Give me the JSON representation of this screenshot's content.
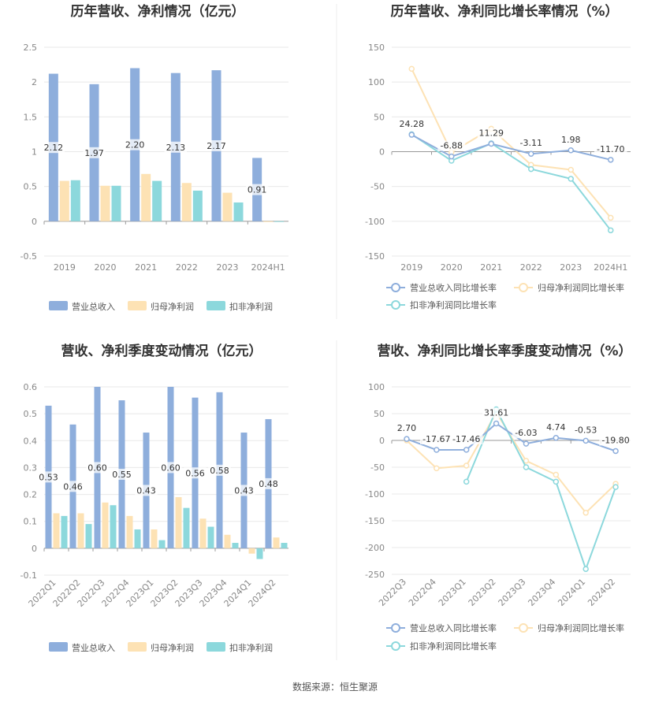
{
  "colors": {
    "revenue": "#8eaedc",
    "net_profit": "#fde2b4",
    "deducted_profit": "#8cd8dc",
    "grid": "#e8e8e8",
    "axis": "#999999"
  },
  "source_text": "数据来源：恒生聚源",
  "chart_data": [
    {
      "type": "bar",
      "title": "历年营收、净利情况（亿元）",
      "categories": [
        "2019",
        "2020",
        "2021",
        "2022",
        "2023",
        "2024H1"
      ],
      "ylim": [
        -0.5,
        2.5
      ],
      "yticks": [
        "2.5",
        "2",
        "1.5",
        "1",
        "0.5",
        "0",
        "-0.5"
      ],
      "series": [
        {
          "name": "营业总收入",
          "values": [
            2.12,
            1.97,
            2.2,
            2.13,
            2.17,
            0.91
          ]
        },
        {
          "name": "归母净利润",
          "values": [
            0.58,
            0.51,
            0.68,
            0.55,
            0.41,
            0.0
          ]
        },
        {
          "name": "扣非净利润",
          "values": [
            0.59,
            0.51,
            0.58,
            0.44,
            0.27,
            -0.01
          ]
        }
      ],
      "data_labels": [
        "2.12",
        "1.97",
        "2.20",
        "2.13",
        "2.17",
        "0.91"
      ],
      "grid": true,
      "legend": "bottom"
    },
    {
      "type": "line",
      "title": "历年营收、净利同比增长率情况（%）",
      "categories": [
        "2019",
        "2020",
        "2021",
        "2022",
        "2023",
        "2024H1"
      ],
      "ylim": [
        -150,
        150
      ],
      "yticks": [
        "150",
        "100",
        "50",
        "0",
        "-50",
        "-100",
        "-150"
      ],
      "series": [
        {
          "name": "营业总收入同比增长率",
          "values": [
            24.28,
            -6.88,
            11.29,
            -3.11,
            1.98,
            -11.7
          ]
        },
        {
          "name": "归母净利润同比增长率",
          "values": [
            119,
            -1,
            33,
            -19,
            -26,
            -95
          ]
        },
        {
          "name": "扣非净利润同比增长率",
          "values": [
            25,
            -13,
            12,
            -25,
            -39,
            -113
          ]
        }
      ],
      "data_labels": [
        "24.28",
        "-6.88",
        "11.29",
        "-3.11",
        "1.98",
        "-11.70"
      ],
      "grid": true,
      "legend": "bottom"
    },
    {
      "type": "bar",
      "title": "营收、净利季度变动情况（亿元）",
      "categories": [
        "2022Q1",
        "2022Q2",
        "2022Q3",
        "2022Q4",
        "2023Q1",
        "2023Q2",
        "2023Q3",
        "2023Q4",
        "2024Q1",
        "2024Q2"
      ],
      "ylim": [
        -0.1,
        0.6
      ],
      "yticks": [
        "0.6",
        "0.5",
        "0.4",
        "0.3",
        "0.2",
        "0.1",
        "0",
        "-0.1"
      ],
      "series": [
        {
          "name": "营业总收入",
          "values": [
            0.53,
            0.46,
            0.6,
            0.55,
            0.43,
            0.6,
            0.56,
            0.58,
            0.43,
            0.48
          ]
        },
        {
          "name": "归母净利润",
          "values": [
            0.13,
            0.13,
            0.17,
            0.12,
            0.07,
            0.19,
            0.11,
            0.05,
            -0.02,
            0.04
          ]
        },
        {
          "name": "扣非净利润",
          "values": [
            0.12,
            0.09,
            0.16,
            0.07,
            0.03,
            0.15,
            0.08,
            0.02,
            -0.04,
            0.02
          ]
        }
      ],
      "data_labels": [
        "0.53",
        "0.46",
        "0.60",
        "0.55",
        "0.43",
        "0.60",
        "0.56",
        "0.58",
        "0.43",
        "0.48"
      ],
      "grid": true,
      "legend": "bottom"
    },
    {
      "type": "line",
      "title": "营收、净利同比增长率季度变动情况（%）",
      "categories": [
        "2022Q3",
        "2022Q4",
        "2023Q1",
        "2023Q2",
        "2023Q3",
        "2023Q4",
        "2024Q1",
        "2024Q2"
      ],
      "ylim": [
        -250,
        100
      ],
      "yticks": [
        "100",
        "50",
        "0",
        "-50",
        "-100",
        "-150",
        "-200",
        "-250"
      ],
      "series": [
        {
          "name": "营业总收入同比增长率",
          "values": [
            2.7,
            -17.67,
            -17.46,
            31.61,
            -6.03,
            4.74,
            -0.53,
            -19.8
          ]
        },
        {
          "name": "归母净利润同比增长率",
          "values": [
            0,
            -52,
            -47,
            52,
            -38,
            -64,
            -135,
            -81
          ]
        },
        {
          "name": "扣非净利润同比增长率",
          "values": [
            null,
            null,
            -77,
            58,
            -50,
            -77,
            -240,
            -87
          ]
        }
      ],
      "data_labels": [
        "2.70",
        "-17.67",
        "-17.46",
        "31.61",
        "-6.03",
        "4.74",
        "-0.53",
        "-19.80"
      ],
      "grid": true,
      "legend": "bottom"
    }
  ]
}
